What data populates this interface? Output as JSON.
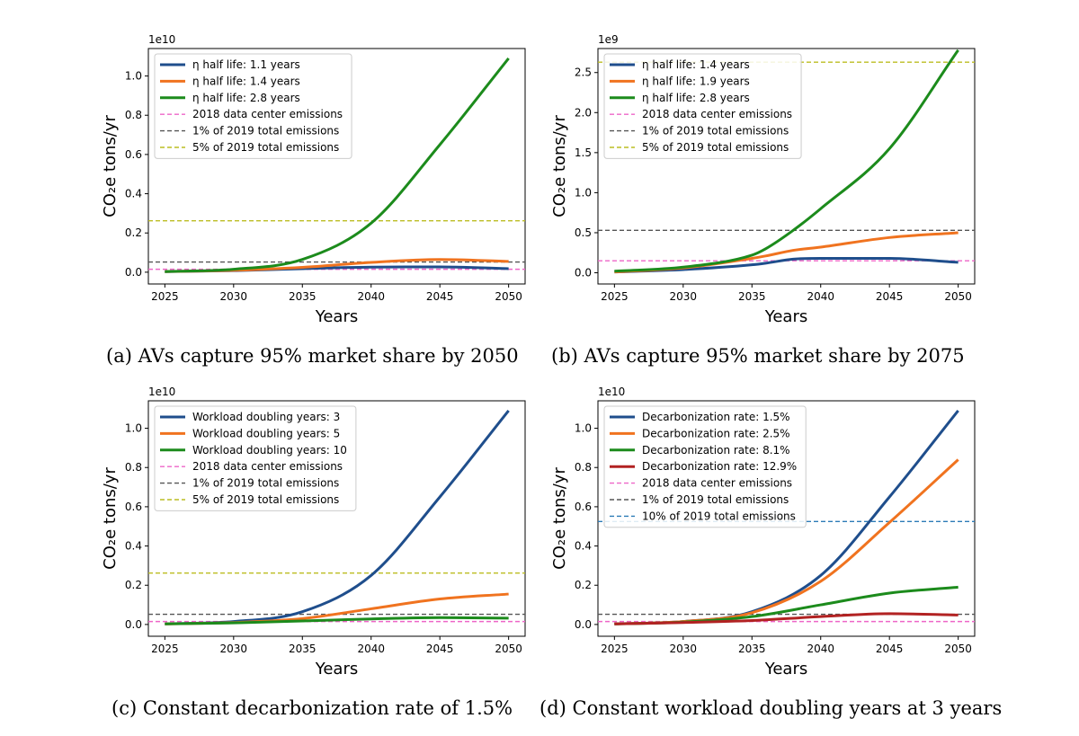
{
  "chart_data": [
    {
      "type": "line",
      "caption": "(a) AVs capture 95% market share by 2050",
      "ylabel": "CO₂e tons/yr",
      "xlabel": "Years",
      "exponent_label": "1e10",
      "scale": 10000000000,
      "xlim": [
        2023.8,
        2051.2
      ],
      "ylim": [
        -0.06,
        1.14
      ],
      "xticks": [
        2025,
        2030,
        2035,
        2040,
        2045,
        2050
      ],
      "yticks": [
        0.0,
        0.2,
        0.4,
        0.6,
        0.8,
        1.0
      ],
      "legend_position": "upper-left",
      "x": [
        2025,
        2030,
        2035,
        2040,
        2045,
        2050
      ],
      "series": [
        {
          "name": "η half life: 1.1 years",
          "color": "#1f4e8c",
          "values": [
            0.003,
            0.008,
            0.018,
            0.026,
            0.027,
            0.018
          ]
        },
        {
          "name": "η half life: 1.4 years",
          "color": "#f0731f",
          "values": [
            0.003,
            0.01,
            0.025,
            0.05,
            0.065,
            0.055
          ]
        },
        {
          "name": "η half life: 2.8 years",
          "color": "#1c8b1c",
          "values": [
            0.003,
            0.015,
            0.065,
            0.25,
            0.65,
            1.09
          ]
        }
      ],
      "reference_lines": [
        {
          "name": "2018 data center emissions",
          "color": "#ee66c8",
          "value": 0.015
        },
        {
          "name": "1% of 2019 total emissions",
          "color": "#555555",
          "value": 0.052
        },
        {
          "name": "5% of 2019 total emissions",
          "color": "#bcbd22",
          "value": 0.262
        }
      ]
    },
    {
      "type": "line",
      "caption": "(b) AVs capture 95% market share by 2075",
      "ylabel": "CO₂e tons/yr",
      "xlabel": "Years",
      "exponent_label": "1e9",
      "scale": 1000000000,
      "xlim": [
        2023.8,
        2051.2
      ],
      "ylim": [
        -0.14,
        2.8
      ],
      "xticks": [
        2025,
        2030,
        2035,
        2040,
        2045,
        2050
      ],
      "yticks": [
        0.0,
        0.5,
        1.0,
        1.5,
        2.0,
        2.5
      ],
      "legend_position": "upper-left",
      "x": [
        2025,
        2030,
        2035,
        2036,
        2038,
        2040,
        2045,
        2050
      ],
      "series": [
        {
          "name": "η half life: 1.4 years",
          "color": "#1f4e8c",
          "values": [
            0.01,
            0.04,
            0.1,
            0.12,
            0.17,
            0.18,
            0.18,
            0.13
          ]
        },
        {
          "name": "η half life: 1.9 years",
          "color": "#f0731f",
          "values": [
            0.01,
            0.06,
            0.18,
            0.21,
            0.28,
            0.32,
            0.44,
            0.5
          ]
        },
        {
          "name": "η half life: 2.8 years",
          "color": "#1c8b1c",
          "values": [
            0.02,
            0.07,
            0.22,
            0.3,
            0.53,
            0.8,
            1.55,
            2.78
          ]
        }
      ],
      "reference_lines": [
        {
          "name": "2018 data center emissions",
          "color": "#ee66c8",
          "value": 0.15
        },
        {
          "name": "1% of 2019 total emissions",
          "color": "#555555",
          "value": 0.53
        },
        {
          "name": "5% of 2019 total emissions",
          "color": "#bcbd22",
          "value": 2.63
        }
      ]
    },
    {
      "type": "line",
      "caption": "(c) Constant decarbonization rate of 1.5%",
      "ylabel": "CO₂e tons/yr",
      "xlabel": "Years",
      "exponent_label": "1e10",
      "scale": 10000000000,
      "xlim": [
        2023.8,
        2051.2
      ],
      "ylim": [
        -0.06,
        1.14
      ],
      "xticks": [
        2025,
        2030,
        2035,
        2040,
        2045,
        2050
      ],
      "yticks": [
        0.0,
        0.2,
        0.4,
        0.6,
        0.8,
        1.0
      ],
      "legend_position": "upper-left",
      "x": [
        2025,
        2030,
        2035,
        2040,
        2045,
        2050
      ],
      "series": [
        {
          "name": "Workload doubling years: 3",
          "color": "#1f4e8c",
          "values": [
            0.003,
            0.015,
            0.065,
            0.25,
            0.65,
            1.09
          ]
        },
        {
          "name": "Workload doubling years: 5",
          "color": "#f0731f",
          "values": [
            0.003,
            0.01,
            0.03,
            0.08,
            0.13,
            0.155
          ]
        },
        {
          "name": "Workload doubling years: 10",
          "color": "#1c8b1c",
          "values": [
            0.003,
            0.008,
            0.018,
            0.028,
            0.035,
            0.032
          ]
        }
      ],
      "reference_lines": [
        {
          "name": "2018 data center emissions",
          "color": "#ee66c8",
          "value": 0.015
        },
        {
          "name": "1% of 2019 total emissions",
          "color": "#555555",
          "value": 0.052
        },
        {
          "name": "5% of 2019 total emissions",
          "color": "#bcbd22",
          "value": 0.262
        }
      ]
    },
    {
      "type": "line",
      "caption": "(d) Constant workload doubling years at 3 years",
      "ylabel": "CO₂e tons/yr",
      "xlabel": "Years",
      "exponent_label": "1e10",
      "scale": 10000000000,
      "xlim": [
        2023.8,
        2051.2
      ],
      "ylim": [
        -0.06,
        1.14
      ],
      "xticks": [
        2025,
        2030,
        2035,
        2040,
        2045,
        2050
      ],
      "yticks": [
        0.0,
        0.2,
        0.4,
        0.6,
        0.8,
        1.0
      ],
      "legend_position": "upper-left",
      "x": [
        2025,
        2030,
        2035,
        2040,
        2045,
        2050
      ],
      "series": [
        {
          "name": "Decarbonization rate: 1.5%",
          "color": "#1f4e8c",
          "values": [
            0.003,
            0.015,
            0.065,
            0.25,
            0.65,
            1.09
          ]
        },
        {
          "name": "Decarbonization rate: 2.5%",
          "color": "#f0731f",
          "values": [
            0.003,
            0.015,
            0.06,
            0.22,
            0.52,
            0.84
          ]
        },
        {
          "name": "Decarbonization rate: 8.1%",
          "color": "#1c8b1c",
          "values": [
            0.003,
            0.012,
            0.04,
            0.1,
            0.16,
            0.19
          ]
        },
        {
          "name": "Decarbonization rate: 12.9%",
          "color": "#b22222",
          "values": [
            0.003,
            0.01,
            0.02,
            0.04,
            0.055,
            0.048
          ]
        }
      ],
      "reference_lines": [
        {
          "name": "2018 data center emissions",
          "color": "#ee66c8",
          "value": 0.015
        },
        {
          "name": "1% of 2019 total emissions",
          "color": "#555555",
          "value": 0.052
        },
        {
          "name": "10% of 2019 total emissions",
          "color": "#2c7bb6",
          "value": 0.525
        }
      ]
    }
  ]
}
